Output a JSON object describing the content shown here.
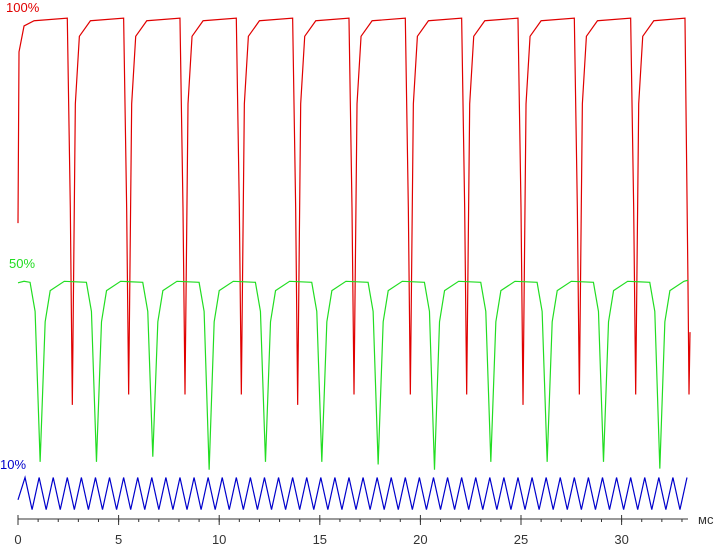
{
  "chart_data": {
    "type": "line",
    "xlabel": "мс",
    "xlim": [
      0,
      33.3
    ],
    "xticks": [
      0,
      5,
      10,
      15,
      20,
      25,
      30
    ],
    "xminorticks": [
      0,
      1,
      2,
      3,
      4,
      5,
      6,
      7,
      8,
      9,
      10,
      11,
      12,
      13,
      14,
      15,
      16,
      17,
      18,
      19,
      20,
      21,
      22,
      23,
      24,
      25,
      26,
      27,
      28,
      29,
      30,
      31,
      32,
      33
    ],
    "ylim": [
      0,
      100
    ],
    "series": [
      {
        "name": "100%",
        "color": "#e00000",
        "x": [
          0,
          0.05,
          0.3,
          0.8,
          2.45,
          2.6,
          2.7,
          2.85,
          3.05,
          3.6,
          5.25,
          5.4,
          5.5,
          5.65,
          5.85,
          6.4,
          8.05,
          8.2,
          8.3,
          8.45,
          8.65,
          9.2,
          10.85,
          11,
          11.1,
          11.25,
          11.45,
          12,
          13.65,
          13.8,
          13.9,
          14.05,
          14.25,
          14.8,
          16.45,
          16.6,
          16.7,
          16.85,
          17.05,
          17.6,
          19.25,
          19.4,
          19.5,
          19.65,
          19.85,
          20.4,
          22.05,
          22.2,
          22.3,
          22.45,
          22.65,
          23.2,
          24.85,
          25,
          25.1,
          25.25,
          25.45,
          26,
          27.65,
          27.8,
          27.9,
          28.05,
          28.25,
          28.8,
          30.45,
          30.6,
          30.7,
          30.85,
          31.05,
          31.6,
          33.15,
          33.3,
          33.35,
          33.4
        ],
        "values": [
          57,
          90,
          95,
          96,
          96.5,
          60,
          22,
          80,
          93,
          96,
          96.5,
          60,
          24,
          80,
          93,
          96,
          96.5,
          60,
          24,
          80,
          93,
          96,
          96.5,
          60,
          24,
          80,
          93,
          96,
          96.5,
          60,
          22,
          80,
          93,
          96,
          96.5,
          60,
          24,
          80,
          93,
          96,
          96.5,
          60,
          24,
          80,
          93,
          96,
          96.5,
          60,
          24,
          80,
          93,
          96,
          96.5,
          60,
          22,
          80,
          93,
          96,
          96.5,
          60,
          24,
          80,
          93,
          96,
          96.5,
          60,
          24,
          80,
          93,
          96,
          96.5,
          45,
          24,
          36
        ]
      },
      {
        "name": "50%",
        "color": "#22dd22",
        "x": [
          0,
          0.3,
          0.6,
          0.85,
          1.1,
          1.35,
          1.6,
          2.3,
          3.4,
          3.65,
          3.9,
          4.15,
          4.4,
          5.1,
          6.2,
          6.45,
          6.7,
          6.95,
          7.2,
          7.9,
          9,
          9.25,
          9.5,
          9.75,
          10,
          10.7,
          11.8,
          12.05,
          12.3,
          12.55,
          12.8,
          13.5,
          14.6,
          14.85,
          15.1,
          15.35,
          15.6,
          16.3,
          17.4,
          17.65,
          17.9,
          18.15,
          18.4,
          19.1,
          20.2,
          20.45,
          20.7,
          20.95,
          21.2,
          21.9,
          23,
          23.25,
          23.5,
          23.75,
          24,
          24.7,
          25.8,
          26.05,
          26.3,
          26.55,
          26.8,
          27.5,
          28.6,
          28.85,
          29.1,
          29.35,
          29.6,
          30.3,
          31.4,
          31.65,
          31.9,
          32.15,
          32.4,
          33.1,
          33.3
        ],
        "values": [
          45.5,
          45.8,
          45.6,
          40,
          11,
          38,
          44,
          45.8,
          45.6,
          40,
          11,
          38,
          44,
          45.8,
          45.6,
          40,
          12,
          38,
          44,
          45.8,
          45.6,
          40,
          9.5,
          38,
          44,
          45.8,
          45.6,
          40,
          11,
          38,
          44,
          45.8,
          45.6,
          40,
          11,
          38,
          44,
          45.8,
          45.6,
          40,
          10.5,
          38,
          44,
          45.8,
          45.6,
          40,
          9.5,
          38,
          44,
          45.8,
          45.6,
          40,
          11,
          38,
          44,
          45.8,
          45.6,
          40,
          11,
          38,
          44,
          45.8,
          45.6,
          40,
          11,
          38,
          44,
          45.8,
          45.6,
          40,
          9.7,
          38,
          44,
          45.8,
          46
        ]
      },
      {
        "name": "10%",
        "color": "#0000cc",
        "x": [
          0,
          0.35,
          0.7,
          1.05,
          1.4,
          1.75,
          2.1,
          2.45,
          2.8,
          3.15,
          3.5,
          3.85,
          4.2,
          4.55,
          4.9,
          5.25,
          5.6,
          5.95,
          6.3,
          6.65,
          7,
          7.35,
          7.7,
          8.05,
          8.4,
          8.75,
          9.1,
          9.45,
          9.8,
          10.15,
          10.5,
          10.85,
          11.2,
          11.55,
          11.9,
          12.25,
          12.6,
          12.95,
          13.3,
          13.65,
          14,
          14.35,
          14.7,
          15.05,
          15.4,
          15.75,
          16.1,
          16.45,
          16.8,
          17.15,
          17.5,
          17.85,
          18.2,
          18.55,
          18.9,
          19.25,
          19.6,
          19.95,
          20.3,
          20.65,
          21,
          21.35,
          21.7,
          22.05,
          22.4,
          22.75,
          23.1,
          23.45,
          23.8,
          24.15,
          24.5,
          24.85,
          25.2,
          25.55,
          25.9,
          26.25,
          26.6,
          26.95,
          27.3,
          27.65,
          28,
          28.35,
          28.7,
          29.05,
          29.4,
          29.75,
          30.1,
          30.45,
          30.8,
          31.15,
          31.5,
          31.85,
          32.2,
          32.55,
          32.9,
          33.25
        ],
        "values": [
          3.7,
          8,
          1.8,
          8,
          1.8,
          8,
          1.8,
          8,
          1.8,
          8,
          1.8,
          8,
          1.8,
          8,
          1.8,
          8,
          1.8,
          8,
          1.8,
          8,
          1.8,
          8,
          1.8,
          8,
          1.8,
          8,
          1.8,
          8,
          1.8,
          8,
          1.8,
          8,
          1.8,
          8,
          1.8,
          8,
          1.8,
          8,
          1.8,
          8,
          1.8,
          8,
          1.8,
          8,
          1.8,
          8,
          1.8,
          8,
          1.8,
          8,
          1.8,
          8,
          1.8,
          8,
          1.8,
          8,
          1.8,
          8,
          1.8,
          8,
          1.8,
          8,
          1.8,
          8,
          1.8,
          8,
          1.8,
          8,
          1.8,
          8,
          1.8,
          8,
          1.8,
          8,
          1.8,
          8,
          1.8,
          8,
          1.8,
          8,
          1.8,
          8,
          1.8,
          8,
          1.8,
          8,
          1.8,
          8,
          1.8,
          8,
          1.8,
          8,
          1.8,
          8,
          1.8,
          8
        ]
      }
    ]
  }
}
